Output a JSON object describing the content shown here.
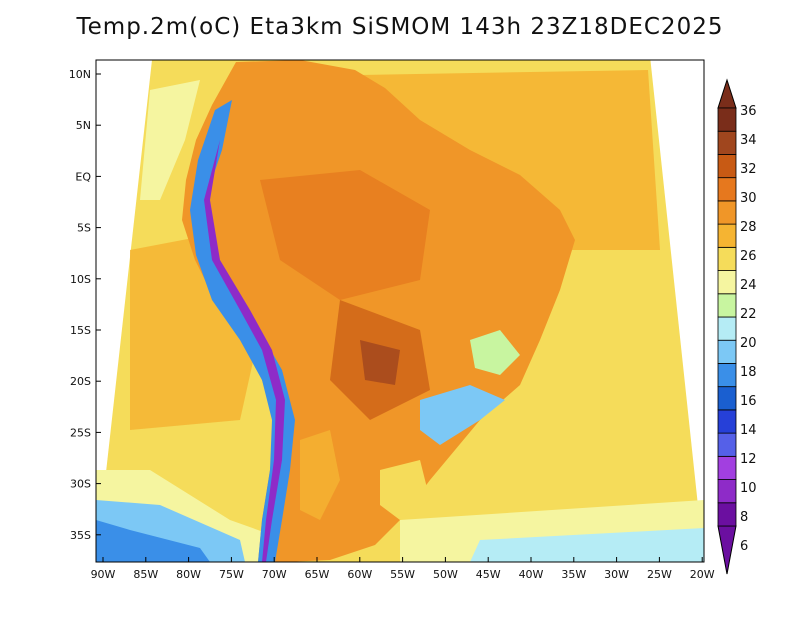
{
  "title": "Temp.2m(oC) Eta3km SiSMOM 143h 23Z18DEC2025",
  "map": {
    "y_ticks": [
      "10N",
      "5N",
      "EQ",
      "5S",
      "10S",
      "15S",
      "20S",
      "25S",
      "30S",
      "35S"
    ],
    "x_ticks": [
      "90W",
      "85W",
      "80W",
      "75W",
      "70W",
      "65W",
      "60W",
      "55W",
      "50W",
      "45W",
      "40W",
      "35W",
      "30W",
      "25W",
      "20W"
    ]
  },
  "colorbar": {
    "labels": [
      "6",
      "8",
      "10",
      "12",
      "14",
      "16",
      "18",
      "20",
      "22",
      "24",
      "26",
      "28",
      "30",
      "32",
      "34",
      "36"
    ],
    "colors": [
      "#6b0fa0",
      "#8e2bc8",
      "#a23fe0",
      "#5560e8",
      "#2640d8",
      "#1a5fd0",
      "#3a8fe8",
      "#7cc8f5",
      "#b5ecf5",
      "#c8f5a0",
      "#f5f5a0",
      "#f5dc5a",
      "#f5b432",
      "#f09628",
      "#e6781e",
      "#c85a14",
      "#a0461e",
      "#7a2d1a"
    ],
    "over_color": "#7a2d1a",
    "under_color": "#6b0fa0"
  }
}
